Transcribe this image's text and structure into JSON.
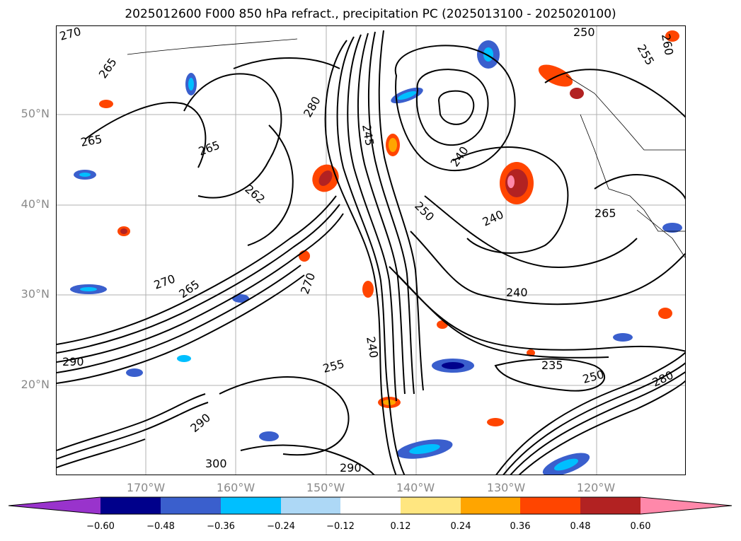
{
  "title": "2025012600 F000 850 hPa refract., precipitation PC (2025013100 - 2025020100)",
  "map": {
    "lat_labels": [
      "50°N",
      "40°N",
      "30°N",
      "20°N"
    ],
    "lon_labels": [
      "170°W",
      "160°W",
      "150°W",
      "140°W",
      "130°W",
      "120°W"
    ],
    "contour_labels": [
      "270",
      "265",
      "265",
      "280",
      "245",
      "240",
      "240",
      "250",
      "265",
      "255",
      "260",
      "250",
      "265",
      "270",
      "262",
      "240",
      "235",
      "250",
      "280",
      "290",
      "290",
      "255",
      "300",
      "290",
      "270",
      "240",
      "265"
    ]
  },
  "colorbar": {
    "tick_labels": [
      "−0.60",
      "−0.48",
      "−0.36",
      "−0.24",
      "−0.12",
      "0.12",
      "0.24",
      "0.36",
      "0.48",
      "0.60"
    ],
    "colors": [
      "#9933cc",
      "#00008b",
      "#3a5fcd",
      "#00bfff",
      "#add8f6",
      "#ffffff",
      "#ffe680",
      "#ffa500",
      "#ff4500",
      "#b22222",
      "#ff88aa"
    ]
  }
}
